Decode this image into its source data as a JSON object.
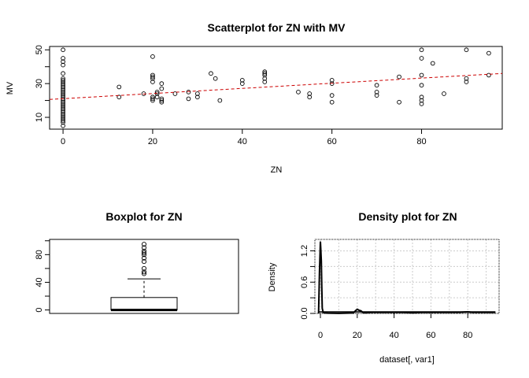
{
  "chart_data": [
    {
      "type": "scatter",
      "title": "Scatterplot for ZN with MV",
      "xlabel": "ZN",
      "ylabel": "MV",
      "xlim": [
        -3,
        98
      ],
      "ylim": [
        3,
        52
      ],
      "xticks": [
        "0",
        "20",
        "40",
        "60",
        "80"
      ],
      "yticks": [
        "10",
        "30",
        "50"
      ],
      "xtick_values": [
        0,
        20,
        40,
        60,
        80
      ],
      "ytick_values": [
        10,
        30,
        50
      ],
      "points": {
        "x": [
          0,
          0,
          0,
          0,
          0,
          0,
          0,
          0,
          0,
          0,
          0,
          0,
          0,
          0,
          0,
          0,
          0,
          0,
          0,
          0,
          0,
          0,
          0,
          0,
          0,
          0,
          0,
          0,
          0,
          0,
          0,
          0,
          0,
          12.5,
          12.5,
          18,
          20,
          20,
          20,
          20,
          20,
          20,
          20,
          20,
          21,
          21,
          21,
          22,
          22,
          22,
          22,
          22,
          25,
          28,
          28,
          30,
          30,
          33,
          34,
          35,
          40,
          40,
          45,
          45,
          45,
          45,
          45,
          52.5,
          55,
          55,
          60,
          60,
          60,
          60,
          70,
          70,
          70,
          75,
          75,
          80,
          80,
          80,
          80,
          80,
          80,
          80,
          82.5,
          85,
          90,
          90,
          90,
          95,
          95
        ],
        "y": [
          5,
          7,
          8,
          9,
          10,
          11,
          12,
          13,
          14,
          15,
          16,
          17,
          18,
          19,
          20,
          21,
          22,
          23,
          24,
          25,
          26,
          27,
          28,
          29,
          30,
          31,
          32,
          33,
          36,
          41,
          43,
          45,
          50,
          28,
          22,
          24,
          20,
          21,
          22,
          31,
          33,
          34,
          35,
          46,
          22,
          24,
          25,
          19,
          20,
          21,
          27,
          30,
          24,
          21,
          25,
          22,
          24,
          36,
          33,
          20,
          32,
          30,
          31,
          33,
          35,
          36,
          37,
          25,
          22,
          24,
          19,
          23,
          30,
          32,
          23,
          25,
          29,
          19,
          34,
          18,
          20,
          22,
          29,
          35,
          45,
          50,
          42,
          24,
          31,
          33,
          50,
          35,
          48
        ]
      },
      "trend_line": {
        "x": [
          -3,
          98
        ],
        "y": [
          20.6,
          36.0
        ],
        "color": "#cc0000",
        "style": "dashed"
      },
      "grid": false
    },
    {
      "type": "box",
      "title": "Boxplot for  ZN",
      "ylim": [
        -5,
        102
      ],
      "yticks": [
        "0",
        "40",
        "80"
      ],
      "ytick_values": [
        0,
        40,
        80
      ],
      "stats": {
        "min": 0,
        "q1": 0,
        "median": 0,
        "q3": 18,
        "whisker_high": 45
      },
      "outliers": [
        52.5,
        55,
        60,
        70,
        75,
        80,
        82.5,
        85,
        90,
        95
      ],
      "grid": false
    },
    {
      "type": "area",
      "title": "Density plot for ZN",
      "xlabel": "dataset[, var1]",
      "ylabel": "Density",
      "xlim": [
        -3,
        97
      ],
      "ylim": [
        0,
        1.42
      ],
      "xticks": [
        "0",
        "20",
        "40",
        "60",
        "80"
      ],
      "yticks": [
        "0.0",
        "0.6",
        "1.2"
      ],
      "yticks_extra": [
        "0.0",
        "0.6",
        "1.2"
      ],
      "xtick_values": [
        0,
        20,
        40,
        60,
        80
      ],
      "ytick_values": [
        0.0,
        0.3,
        0.6,
        0.9,
        1.2
      ],
      "ytick_label_values": [
        0.0,
        0.6,
        1.2
      ],
      "density": {
        "x": [
          -1,
          -0.5,
          0,
          0.25,
          0.5,
          0.75,
          1,
          1.5,
          2,
          4,
          10,
          18,
          19,
          20,
          21,
          22,
          23,
          24,
          28,
          30,
          33,
          35,
          40,
          45,
          50,
          55,
          60,
          70,
          75,
          80,
          82.5,
          85,
          90,
          95
        ],
        "y": [
          0,
          0.8,
          1.38,
          1.2,
          1.0,
          0.5,
          0.1,
          0.02,
          0.01,
          0.005,
          0.002,
          0.01,
          0.05,
          0.08,
          0.06,
          0.05,
          0.02,
          0.01,
          0.02,
          0.02,
          0.02,
          0.02,
          0.02,
          0.02,
          0.01,
          0.02,
          0.02,
          0.02,
          0.02,
          0.03,
          0.02,
          0.02,
          0.02,
          0.02
        ]
      },
      "grid": true
    }
  ]
}
